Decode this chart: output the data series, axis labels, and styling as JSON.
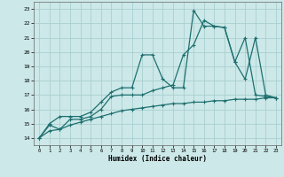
{
  "xlabel": "Humidex (Indice chaleur)",
  "xlim": [
    -0.5,
    23.5
  ],
  "ylim": [
    13.5,
    23.5
  ],
  "xticks": [
    0,
    1,
    2,
    3,
    4,
    5,
    6,
    7,
    8,
    9,
    10,
    11,
    12,
    13,
    14,
    15,
    16,
    17,
    18,
    19,
    20,
    21,
    22,
    23
  ],
  "yticks": [
    14,
    15,
    16,
    17,
    18,
    19,
    20,
    21,
    22,
    23
  ],
  "background_color": "#cce8e8",
  "grid_color": "#aacfcf",
  "line_color": "#1e7070",
  "line1_x": [
    0,
    1,
    2,
    3,
    4,
    5,
    6,
    7,
    8,
    9,
    10,
    11,
    12,
    13,
    14,
    15,
    16,
    17,
    18,
    19,
    20,
    21,
    22,
    23
  ],
  "line1_y": [
    14.0,
    14.9,
    14.6,
    15.3,
    15.3,
    15.5,
    16.0,
    16.9,
    17.0,
    17.0,
    17.0,
    17.3,
    17.5,
    17.7,
    19.8,
    20.5,
    22.2,
    21.8,
    21.7,
    19.3,
    18.1,
    21.0,
    17.0,
    16.8
  ],
  "line2_x": [
    0,
    1,
    2,
    3,
    4,
    5,
    6,
    7,
    8,
    9,
    10,
    11,
    12,
    13,
    14,
    15,
    16,
    17,
    18,
    19,
    20,
    21,
    22,
    23
  ],
  "line2_y": [
    14.0,
    15.0,
    15.5,
    15.5,
    15.5,
    15.8,
    16.5,
    17.2,
    17.5,
    17.5,
    19.8,
    19.8,
    18.1,
    17.5,
    17.5,
    22.9,
    21.8,
    21.8,
    21.7,
    19.3,
    21.0,
    17.0,
    16.9,
    16.8
  ],
  "line3_x": [
    0,
    1,
    2,
    3,
    4,
    5,
    6,
    7,
    8,
    9,
    10,
    11,
    12,
    13,
    14,
    15,
    16,
    17,
    18,
    19,
    20,
    21,
    22,
    23
  ],
  "line3_y": [
    14.0,
    14.5,
    14.6,
    14.9,
    15.1,
    15.3,
    15.5,
    15.7,
    15.9,
    16.0,
    16.1,
    16.2,
    16.3,
    16.4,
    16.4,
    16.5,
    16.5,
    16.6,
    16.6,
    16.7,
    16.7,
    16.7,
    16.8,
    16.8
  ]
}
